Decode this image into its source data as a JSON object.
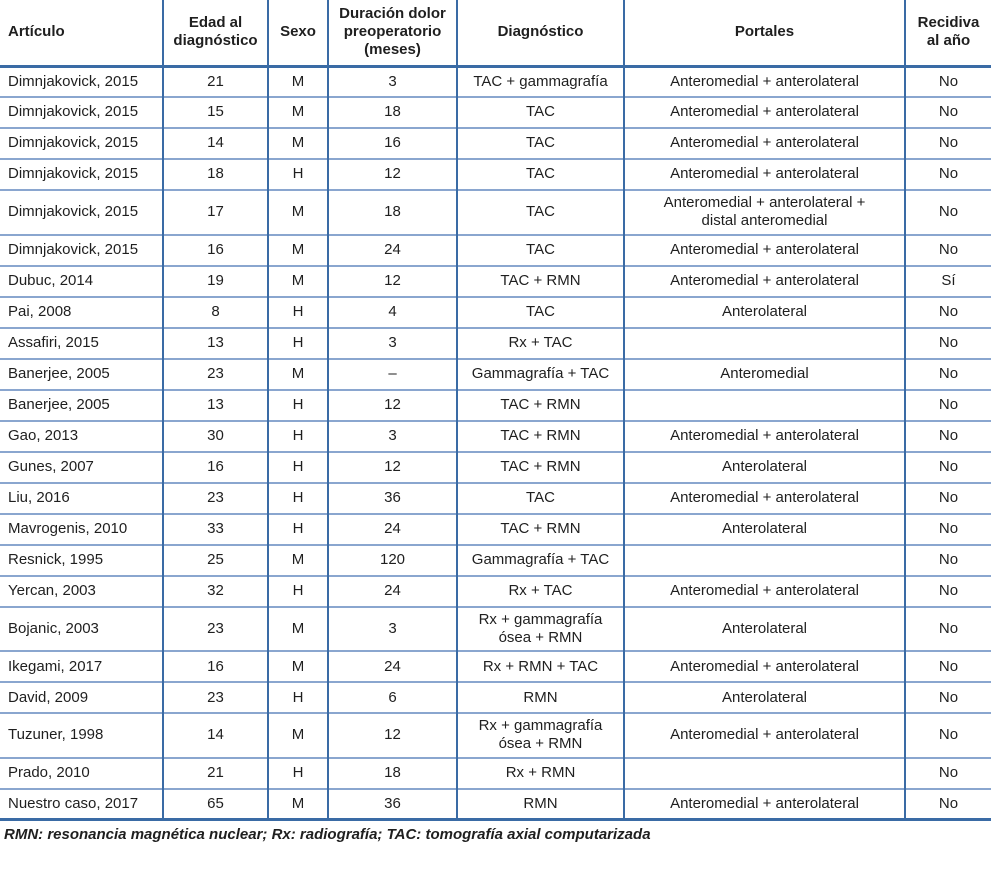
{
  "colors": {
    "border_dark": "#3a6ba5",
    "border_light": "#8aa6cf",
    "text": "#1f1f1f",
    "background": "#ffffff"
  },
  "table": {
    "columns": [
      {
        "key": "articulo",
        "label": "Artículo"
      },
      {
        "key": "edad",
        "label": "Edad al diagnóstico"
      },
      {
        "key": "sexo",
        "label": "Sexo"
      },
      {
        "key": "duracion",
        "label": "Duración dolor preoperatorio (meses)"
      },
      {
        "key": "diagnostico",
        "label": "Diagnóstico"
      },
      {
        "key": "portales",
        "label": "Portales"
      },
      {
        "key": "recidiva",
        "label": "Recidiva al año"
      }
    ],
    "rows": [
      [
        "Dimnjakovick, 2015",
        "21",
        "M",
        "3",
        "TAC + gammagrafía",
        "Anteromedial + anterolateral",
        "No"
      ],
      [
        "Dimnjakovick, 2015",
        "15",
        "M",
        "18",
        "TAC",
        "Anteromedial + anterolateral",
        "No"
      ],
      [
        "Dimnjakovick, 2015",
        "14",
        "M",
        "16",
        "TAC",
        "Anteromedial + anterolateral",
        "No"
      ],
      [
        "Dimnjakovick, 2015",
        "18",
        "H",
        "12",
        "TAC",
        "Anteromedial + anterolateral",
        "No"
      ],
      [
        "Dimnjakovick, 2015",
        "17",
        "M",
        "18",
        "TAC",
        "Anteromedial + anterolateral + distal anteromedial",
        "No"
      ],
      [
        "Dimnjakovick, 2015",
        "16",
        "M",
        "24",
        "TAC",
        "Anteromedial + anterolateral",
        "No"
      ],
      [
        "Dubuc, 2014",
        "19",
        "M",
        "12",
        "TAC + RMN",
        "Anteromedial + anterolateral",
        "Sí"
      ],
      [
        "Pai, 2008",
        "8",
        "H",
        "4",
        "TAC",
        "Anterolateral",
        "No"
      ],
      [
        "Assafiri, 2015",
        "13",
        "H",
        "3",
        "Rx + TAC",
        "",
        "No"
      ],
      [
        "Banerjee, 2005",
        "23",
        "M",
        "–",
        "Gammagrafía + TAC",
        "Anteromedial",
        "No"
      ],
      [
        "Banerjee, 2005",
        "13",
        "H",
        "12",
        "TAC + RMN",
        "",
        "No"
      ],
      [
        "Gao, 2013",
        "30",
        "H",
        "3",
        "TAC + RMN",
        "Anteromedial + anterolateral",
        "No"
      ],
      [
        "Gunes, 2007",
        "16",
        "H",
        "12",
        "TAC + RMN",
        "Anterolateral",
        "No"
      ],
      [
        "Liu, 2016",
        "23",
        "H",
        "36",
        "TAC",
        "Anteromedial + anterolateral",
        "No"
      ],
      [
        "Mavrogenis, 2010",
        "33",
        "H",
        "24",
        "TAC + RMN",
        "Anterolateral",
        "No"
      ],
      [
        "Resnick, 1995",
        "25",
        "M",
        "120",
        "Gammagrafía + TAC",
        "",
        "No"
      ],
      [
        "Yercan, 2003",
        "32",
        "H",
        "24",
        "Rx + TAC",
        "Anteromedial + anterolateral",
        "No"
      ],
      [
        "Bojanic, 2003",
        "23",
        "M",
        "3",
        "Rx + gammagrafía ósea + RMN",
        "Anterolateral",
        "No"
      ],
      [
        "Ikegami, 2017",
        "16",
        "M",
        "24",
        "Rx + RMN + TAC",
        "Anteromedial + anterolateral",
        "No"
      ],
      [
        "David, 2009",
        "23",
        "H",
        "6",
        "RMN",
        "Anterolateral",
        "No"
      ],
      [
        "Tuzuner, 1998",
        "14",
        "M",
        "12",
        "Rx + gammagrafía ósea + RMN",
        "Anteromedial + anterolateral",
        "No"
      ],
      [
        "Prado, 2010",
        "21",
        "H",
        "18",
        "Rx + RMN",
        "",
        "No"
      ],
      [
        "Nuestro caso, 2017",
        "65",
        "M",
        "36",
        "RMN",
        "Anteromedial + anterolateral",
        "No"
      ]
    ]
  },
  "footnote": "RMN: resonancia magnética nuclear; Rx: radiografía; TAC: tomografía axial computarizada"
}
